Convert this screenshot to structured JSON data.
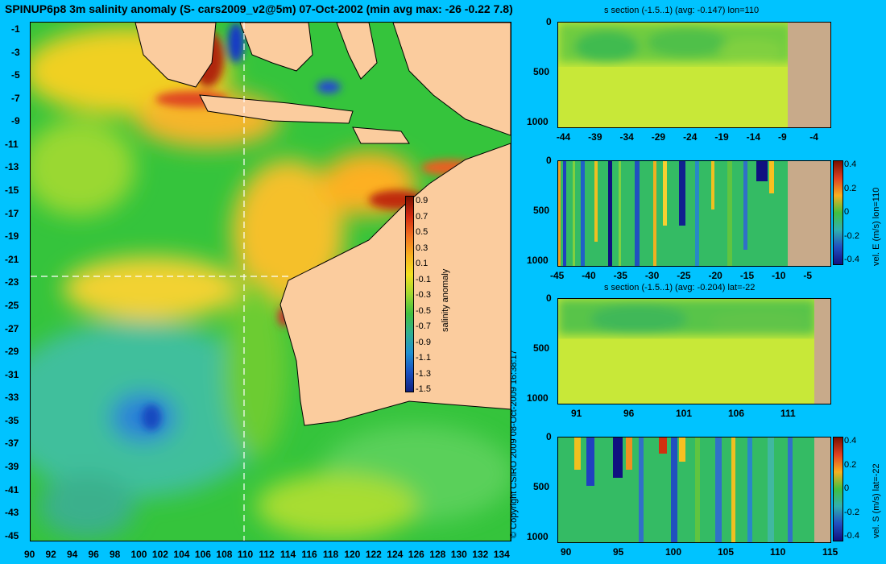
{
  "title": "SPINUP6p8 3m salinity anomaly (S- cars2009_v2@5m) 07-Oct-2002 (min avg max: -26 -0.22 7.8)",
  "copyright": "© Copyright CSIRO 2009  08-Oct-2009 16:38:17",
  "colors": {
    "background": "#00c3ff",
    "land": "#fbcc9e",
    "section_land": "#c8aa8a"
  },
  "map": {
    "x_ticks": [
      "90",
      "92",
      "94",
      "96",
      "98",
      "100",
      "102",
      "104",
      "106",
      "108",
      "110",
      "112",
      "114",
      "116",
      "118",
      "120",
      "122",
      "124",
      "126",
      "128",
      "130",
      "132",
      "134"
    ],
    "y_ticks": [
      "-1",
      "-3",
      "-5",
      "-7",
      "-9",
      "-11",
      "-13",
      "-15",
      "-17",
      "-19",
      "-21",
      "-23",
      "-25",
      "-27",
      "-29",
      "-31",
      "-33",
      "-35",
      "-37",
      "-39",
      "-41",
      "-43",
      "-45"
    ],
    "colorbar": {
      "label": "salinity anomaly",
      "ticks": [
        "0.9",
        "0.7",
        "0.5",
        "0.3",
        "0.1",
        "-0.1",
        "-0.3",
        "-0.5",
        "-0.7",
        "-0.9",
        "-1.1",
        "-1.3",
        "-1.5"
      ]
    }
  },
  "panels": [
    {
      "title": "s section (-1.5..1) (avg: -0.147) lon=110",
      "x_ticks": [
        "-44",
        "-39",
        "-34",
        "-29",
        "-24",
        "-19",
        "-14",
        "-9",
        "-4"
      ],
      "y_ticks": [
        "0",
        "500",
        "1000"
      ]
    },
    {
      "title": "",
      "x_ticks": [
        "-45",
        "-40",
        "-35",
        "-30",
        "-25",
        "-20",
        "-15",
        "-10",
        "-5"
      ],
      "y_ticks": [
        "0",
        "500",
        "1000"
      ],
      "colorbar": {
        "label": "vel. E (m/s) lon=110",
        "ticks": [
          "0.4",
          "0.2",
          "0",
          "-0.2",
          "-0.4"
        ]
      }
    },
    {
      "title": "s section (-1.5..1) (avg: -0.204) lat=-22",
      "x_ticks": [
        "91",
        "96",
        "101",
        "106",
        "111"
      ],
      "y_ticks": [
        "0",
        "500",
        "1000"
      ]
    },
    {
      "title": "",
      "x_ticks": [
        "90",
        "95",
        "100",
        "105",
        "110",
        "115"
      ],
      "y_ticks": [
        "0",
        "500",
        "1000"
      ],
      "colorbar": {
        "label": "vel. S (m/s) lat=-22",
        "ticks": [
          "0.4",
          "0.2",
          "0",
          "-0.2",
          "-0.4"
        ]
      }
    }
  ],
  "chart_data": [
    {
      "type": "heatmap",
      "title": "SPINUP6p8 3m salinity anomaly (S- cars2009_v2@5m) 07-Oct-2002 (min avg max: -26 -0.22 7.8)",
      "xlim": [
        90,
        135
      ],
      "ylim": [
        -45,
        0
      ],
      "colorbar_range": [
        -1.5,
        1.0
      ],
      "colorbar_label": "salinity anomaly",
      "stats": {
        "min": -26,
        "avg": -0.22,
        "max": 7.8
      },
      "section_lines": {
        "lon": 110,
        "lat": -22
      }
    },
    {
      "type": "heatmap",
      "title": "s section (-1.5..1) (avg: -0.147) lon=110",
      "xlim": [
        -45,
        -2
      ],
      "ylim": [
        1050,
        0
      ],
      "avg": -0.147
    },
    {
      "type": "heatmap",
      "colorbar_label": "vel. E (m/s) lon=110",
      "xlim": [
        -45,
        -2
      ],
      "ylim": [
        1050,
        0
      ],
      "colorbar_range": [
        -0.4,
        0.4
      ]
    },
    {
      "type": "heatmap",
      "title": "s section (-1.5..1) (avg: -0.204) lat=-22",
      "xlim": [
        89,
        115
      ],
      "ylim": [
        1050,
        0
      ],
      "avg": -0.204
    },
    {
      "type": "heatmap",
      "colorbar_label": "vel. S (m/s) lat=-22",
      "xlim": [
        89,
        115
      ],
      "ylim": [
        1050,
        0
      ],
      "colorbar_range": [
        -0.4,
        0.4
      ]
    }
  ]
}
